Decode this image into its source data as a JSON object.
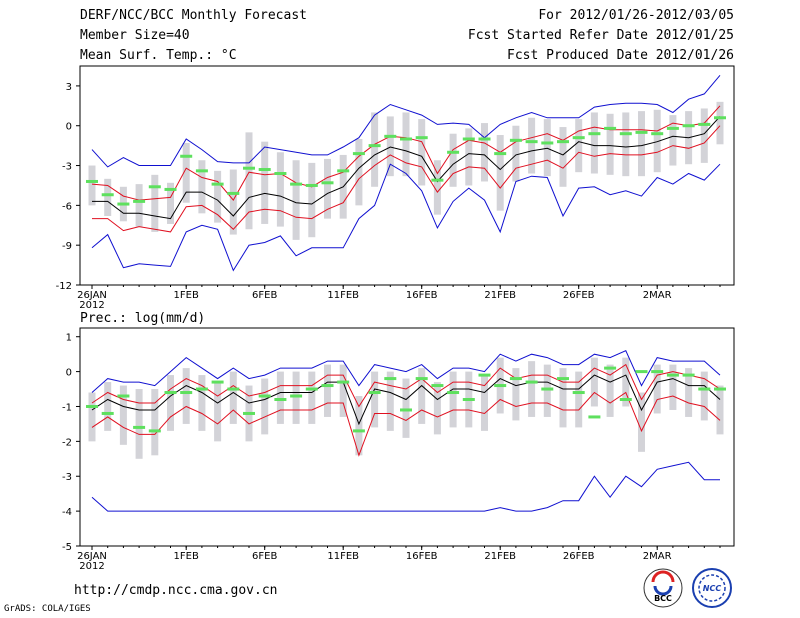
{
  "header": {
    "left": [
      "DERF/NCC/BCC Monthly Forecast",
      "Member Size=40",
      "Mean Surf. Temp.: °C"
    ],
    "right": [
      "For 2012/01/26-2012/03/05",
      "Fcst Started Refer Date 2012/01/25",
      "Fcst Produced Date 2012/01/26"
    ]
  },
  "footer": {
    "url": "http://cmdp.ncc.cma.gov.cn",
    "credit": "GrADS: COLA/IGES",
    "logo1": "BCC",
    "logo2": "NCC"
  },
  "colors": {
    "mean": "#000000",
    "spread": "#e01020",
    "extreme": "#1010d0",
    "box": "#d3d3d8",
    "marker": "#5ee05e"
  },
  "chart_data": [
    {
      "type": "line",
      "title": "Mean Surf. Temp.: °C",
      "ylim": [
        -12,
        4.5
      ],
      "yticks": [
        3,
        0,
        -3,
        -6,
        -9,
        -12
      ],
      "xticks": [
        {
          "i": 0,
          "label": "26JAN",
          "sub": "2012"
        },
        {
          "i": 6,
          "label": "1FEB"
        },
        {
          "i": 11,
          "label": "6FEB"
        },
        {
          "i": 16,
          "label": "11FEB"
        },
        {
          "i": 21,
          "label": "16FEB"
        },
        {
          "i": 26,
          "label": "21FEB"
        },
        {
          "i": 31,
          "label": "26FEB"
        },
        {
          "i": 36,
          "label": "2MAR"
        }
      ],
      "series": [
        {
          "name": "max",
          "values": [
            -1.8,
            -3.1,
            -2.4,
            -3.0,
            -3.0,
            -3.0,
            -1.0,
            -1.8,
            -2.7,
            -2.8,
            -2.8,
            -1.6,
            -1.8,
            -2.0,
            -2.2,
            -2.2,
            -1.6,
            -0.9,
            0.8,
            1.6,
            1.2,
            0.8,
            0.1,
            0.2,
            0.1,
            -0.9,
            0.1,
            0.6,
            1.0,
            0.6,
            0.6,
            0.6,
            1.4,
            1.6,
            1.7,
            1.7,
            1.6,
            1.0,
            2.0,
            2.4,
            3.8
          ]
        },
        {
          "name": "upper",
          "values": [
            -4.4,
            -4.5,
            -5.3,
            -5.6,
            -5.5,
            -5.4,
            -3.2,
            -3.9,
            -4.2,
            -5.6,
            -3.5,
            -3.7,
            -3.6,
            -4.3,
            -4.6,
            -3.9,
            -3.5,
            -2.3,
            -1.4,
            -0.8,
            -0.9,
            -1.2,
            -3.6,
            -1.8,
            -1.1,
            -1.3,
            -2.0,
            -1.2,
            -0.9,
            -0.6,
            -1.1,
            -0.4,
            -0.1,
            -0.3,
            -0.3,
            -0.3,
            -0.4,
            0.2,
            0.0,
            0.2,
            1.5
          ]
        },
        {
          "name": "mean",
          "values": [
            -5.7,
            -5.7,
            -6.6,
            -6.6,
            -6.8,
            -7.0,
            -5.0,
            -5.0,
            -5.6,
            -6.8,
            -5.4,
            -5.1,
            -5.3,
            -5.8,
            -5.9,
            -5.1,
            -4.6,
            -3.2,
            -2.2,
            -1.6,
            -1.9,
            -2.3,
            -4.2,
            -2.9,
            -2.1,
            -2.2,
            -3.3,
            -2.2,
            -1.9,
            -1.7,
            -2.2,
            -1.2,
            -1.5,
            -1.5,
            -1.6,
            -1.5,
            -1.2,
            -0.8,
            -0.9,
            -0.6,
            0.7
          ]
        },
        {
          "name": "lower",
          "values": [
            -7.0,
            -7.0,
            -7.9,
            -7.6,
            -7.8,
            -8.0,
            -6.1,
            -6.0,
            -6.7,
            -7.8,
            -6.5,
            -6.3,
            -6.4,
            -6.9,
            -7.0,
            -6.3,
            -5.8,
            -4.0,
            -3.0,
            -2.2,
            -2.8,
            -3.1,
            -5.0,
            -3.6,
            -3.1,
            -3.2,
            -4.7,
            -3.2,
            -2.9,
            -2.6,
            -3.2,
            -2.0,
            -2.3,
            -2.1,
            -2.2,
            -2.2,
            -2.0,
            -1.5,
            -1.7,
            -1.3,
            0.0
          ]
        },
        {
          "name": "min",
          "values": [
            -9.2,
            -8.2,
            -10.7,
            -10.4,
            -10.5,
            -10.6,
            -8.0,
            -7.5,
            -7.8,
            -10.9,
            -9.0,
            -8.8,
            -8.3,
            -9.8,
            -9.2,
            -9.2,
            -9.2,
            -7.0,
            -6.0,
            -2.9,
            -3.6,
            -4.9,
            -7.7,
            -5.7,
            -4.7,
            -5.6,
            -8.0,
            -4.2,
            -3.8,
            -3.9,
            -6.8,
            -4.7,
            -4.6,
            -5.2,
            -4.9,
            -5.3,
            -3.9,
            -4.4,
            -3.6,
            -4.1,
            -2.9
          ]
        },
        {
          "name": "box_top",
          "values": [
            -3.0,
            -4.0,
            -4.6,
            -4.4,
            -3.7,
            -4.3,
            -1.3,
            -2.6,
            -3.4,
            -3.3,
            -0.5,
            -1.2,
            -2.0,
            -2.6,
            -2.8,
            -2.5,
            -2.2,
            -1.0,
            1.0,
            0.7,
            1.0,
            0.5,
            -2.6,
            -0.6,
            -0.2,
            0.2,
            -0.7,
            0.0,
            0.6,
            0.5,
            -0.1,
            0.5,
            1.0,
            0.9,
            1.0,
            1.1,
            1.2,
            0.8,
            1.1,
            1.3,
            1.8
          ]
        },
        {
          "name": "box_bottom",
          "values": [
            -6.0,
            -6.8,
            -7.2,
            -7.6,
            -8.0,
            -7.4,
            -5.8,
            -6.6,
            -7.3,
            -8.2,
            -7.8,
            -7.4,
            -7.6,
            -8.6,
            -8.4,
            -7.0,
            -7.0,
            -6.0,
            -4.6,
            -3.8,
            -3.8,
            -4.5,
            -6.7,
            -4.6,
            -4.5,
            -4.2,
            -6.4,
            -4.2,
            -3.6,
            -3.8,
            -4.6,
            -3.5,
            -3.6,
            -3.7,
            -3.8,
            -3.8,
            -3.5,
            -3.0,
            -2.9,
            -2.8,
            -1.4
          ]
        },
        {
          "name": "observed",
          "values": [
            -4.2,
            -5.2,
            -5.9,
            -5.7,
            -4.6,
            -4.8,
            -2.3,
            -3.4,
            -4.4,
            -5.1,
            -3.2,
            -3.3,
            -3.6,
            -4.4,
            -4.5,
            -4.3,
            -3.4,
            -2.1,
            -1.5,
            -0.8,
            -1.0,
            -0.9,
            -4.1,
            -2.0,
            -1.0,
            -1.0,
            -2.1,
            -1.1,
            -1.2,
            -1.3,
            -1.2,
            -0.9,
            -0.6,
            -0.2,
            -0.6,
            -0.5,
            -0.6,
            -0.2,
            0.0,
            0.1,
            0.6
          ]
        }
      ]
    },
    {
      "type": "line",
      "title": "Prec.: log(mm/d)",
      "ylim": [
        -5,
        1.25
      ],
      "yticks": [
        1,
        0,
        -1,
        -2,
        -3,
        -4,
        -5
      ],
      "xticks": [
        {
          "i": 0,
          "label": "26JAN",
          "sub": "2012"
        },
        {
          "i": 6,
          "label": "1FEB"
        },
        {
          "i": 11,
          "label": "6FEB"
        },
        {
          "i": 16,
          "label": "11FEB"
        },
        {
          "i": 21,
          "label": "16FEB"
        },
        {
          "i": 26,
          "label": "21FEB"
        },
        {
          "i": 31,
          "label": "26FEB"
        },
        {
          "i": 36,
          "label": "2MAR"
        }
      ],
      "series": [
        {
          "name": "max",
          "values": [
            -0.6,
            -0.2,
            -0.3,
            -0.3,
            -0.4,
            0.0,
            0.4,
            0.1,
            -0.2,
            0.1,
            -0.2,
            -0.1,
            0.1,
            0.1,
            0.1,
            0.3,
            0.3,
            -0.4,
            0.2,
            0.1,
            0.0,
            0.2,
            -0.2,
            0.1,
            0.1,
            0.0,
            0.5,
            0.3,
            0.5,
            0.4,
            0.2,
            0.2,
            0.5,
            0.4,
            0.6,
            -0.4,
            0.4,
            0.3,
            0.3,
            0.3,
            -0.1
          ]
        },
        {
          "name": "upper",
          "values": [
            -0.9,
            -0.6,
            -0.8,
            -0.9,
            -0.9,
            -0.5,
            -0.2,
            -0.4,
            -0.7,
            -0.4,
            -0.7,
            -0.6,
            -0.4,
            -0.4,
            -0.4,
            -0.1,
            -0.1,
            -1.0,
            -0.3,
            -0.4,
            -0.5,
            -0.2,
            -0.6,
            -0.3,
            -0.3,
            -0.4,
            0.1,
            -0.2,
            -0.1,
            -0.1,
            -0.3,
            -0.3,
            0.1,
            -0.1,
            0.2,
            -0.8,
            -0.1,
            0.0,
            -0.1,
            -0.2,
            -0.5
          ]
        },
        {
          "name": "mean",
          "values": [
            -1.1,
            -0.8,
            -1.0,
            -1.1,
            -1.1,
            -0.7,
            -0.4,
            -0.6,
            -0.9,
            -0.6,
            -0.9,
            -0.8,
            -0.6,
            -0.6,
            -0.6,
            -0.3,
            -0.3,
            -1.5,
            -0.5,
            -0.6,
            -0.8,
            -0.4,
            -0.8,
            -0.5,
            -0.5,
            -0.6,
            -0.2,
            -0.4,
            -0.3,
            -0.3,
            -0.5,
            -0.5,
            -0.1,
            -0.3,
            -0.1,
            -1.1,
            -0.3,
            -0.2,
            -0.4,
            -0.4,
            -0.8
          ]
        },
        {
          "name": "lower",
          "values": [
            -1.6,
            -1.3,
            -1.6,
            -1.8,
            -1.8,
            -1.3,
            -1.0,
            -1.2,
            -1.5,
            -1.1,
            -1.5,
            -1.3,
            -1.1,
            -1.1,
            -1.1,
            -0.9,
            -0.9,
            -2.4,
            -1.2,
            -1.2,
            -1.4,
            -1.1,
            -1.3,
            -1.1,
            -1.1,
            -1.2,
            -0.8,
            -1.0,
            -0.9,
            -0.9,
            -1.1,
            -1.1,
            -0.6,
            -0.9,
            -0.6,
            -1.7,
            -0.8,
            -0.7,
            -0.9,
            -1.0,
            -1.4
          ]
        },
        {
          "name": "min",
          "values": [
            -3.6,
            -4.0,
            -4.0,
            -4.0,
            -4.0,
            -4.0,
            -4.0,
            -4.0,
            -4.0,
            -4.0,
            -4.0,
            -4.0,
            -4.0,
            -4.0,
            -4.0,
            -4.0,
            -4.0,
            -4.0,
            -4.0,
            -4.0,
            -4.0,
            -4.0,
            -4.0,
            -4.0,
            -4.0,
            -4.0,
            -3.9,
            -4.0,
            -4.0,
            -3.9,
            -3.7,
            -3.7,
            -3.0,
            -3.6,
            -3.0,
            -3.3,
            -2.8,
            -2.7,
            -2.6,
            -3.1,
            -3.1
          ]
        },
        {
          "name": "box_top",
          "values": [
            -0.6,
            -0.3,
            -0.4,
            -0.5,
            -0.5,
            -0.1,
            0.1,
            -0.1,
            -0.3,
            0.0,
            -0.4,
            -0.2,
            0.0,
            0.0,
            0.0,
            0.2,
            0.2,
            -0.7,
            0.0,
            0.0,
            -0.2,
            0.1,
            -0.3,
            0.0,
            0.0,
            -0.1,
            0.4,
            0.1,
            0.3,
            0.2,
            0.1,
            0.0,
            0.4,
            0.2,
            0.4,
            -0.6,
            0.2,
            0.2,
            0.1,
            0.0,
            -0.4
          ]
        },
        {
          "name": "box_bottom",
          "values": [
            -2.0,
            -1.7,
            -2.1,
            -2.5,
            -2.4,
            -1.7,
            -1.5,
            -1.7,
            -2.0,
            -1.5,
            -2.0,
            -1.8,
            -1.5,
            -1.5,
            -1.5,
            -1.3,
            -1.3,
            -2.4,
            -1.6,
            -1.7,
            -1.9,
            -1.5,
            -1.8,
            -1.6,
            -1.6,
            -1.7,
            -1.2,
            -1.4,
            -1.3,
            -1.3,
            -1.6,
            -1.6,
            -1.0,
            -1.3,
            -1.0,
            -2.3,
            -1.2,
            -1.1,
            -1.3,
            -1.4,
            -1.8
          ]
        },
        {
          "name": "observed",
          "values": [
            -1.0,
            -1.2,
            -0.7,
            -1.6,
            -1.7,
            -0.6,
            -0.6,
            -0.5,
            -0.3,
            -0.5,
            -1.2,
            -0.7,
            -0.8,
            -0.7,
            -0.5,
            -0.4,
            -0.3,
            -1.7,
            -0.6,
            -0.2,
            -1.1,
            -0.2,
            -0.4,
            -0.6,
            -0.8,
            -0.1,
            -0.4,
            -0.2,
            -0.3,
            -0.5,
            -0.2,
            -0.6,
            -1.3,
            0.1,
            -0.8,
            0.0,
            0.0,
            -0.1,
            -0.1,
            -0.5,
            -0.5
          ]
        }
      ]
    }
  ]
}
